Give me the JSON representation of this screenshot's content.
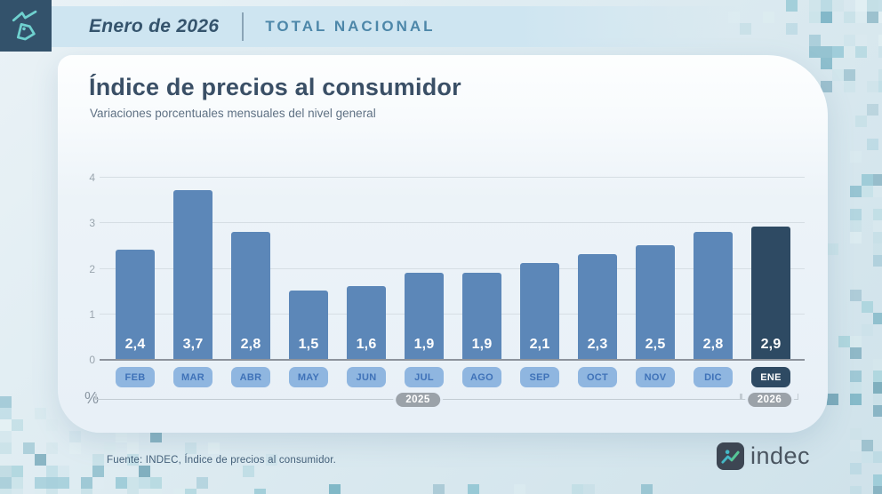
{
  "header": {
    "period": "Enero de 2026",
    "scope": "TOTAL NACIONAL"
  },
  "title": "Índice de precios al consumidor",
  "subtitle": "Variaciones porcentuales mensuales del nivel general",
  "chart_data": {
    "type": "bar",
    "categories": [
      "FEB",
      "MAR",
      "ABR",
      "MAY",
      "JUN",
      "JUL",
      "AGO",
      "SEP",
      "OCT",
      "NOV",
      "DIC",
      "ENE"
    ],
    "values": [
      2.4,
      3.7,
      2.8,
      1.5,
      1.6,
      1.9,
      1.9,
      2.1,
      2.3,
      2.5,
      2.8,
      2.9
    ],
    "value_labels": [
      "2,4",
      "3,7",
      "2,8",
      "1,5",
      "1,6",
      "1,9",
      "1,9",
      "2,1",
      "2,3",
      "2,5",
      "2,8",
      "2,9"
    ],
    "highlight_index": 11,
    "ylabel": "%",
    "ylim": [
      0,
      4
    ],
    "yticks": [
      0,
      1,
      2,
      3,
      4
    ],
    "grid": "horizontal",
    "year_groups": [
      {
        "label": "2025",
        "start": 0,
        "end": 10
      },
      {
        "label": "2026",
        "start": 11,
        "end": 11
      }
    ],
    "colors": {
      "bar": "#5c87b8",
      "bar_highlight": "#2e4a63",
      "badge": "#8fb6e0",
      "badge_text": "#3f72b8",
      "badge_highlight": "#2e4a63",
      "badge_highlight_text": "#ffffff"
    }
  },
  "footer": {
    "source": "Fuente: INDEC, Índice de precios al consumidor.",
    "logo_text": "indec"
  }
}
